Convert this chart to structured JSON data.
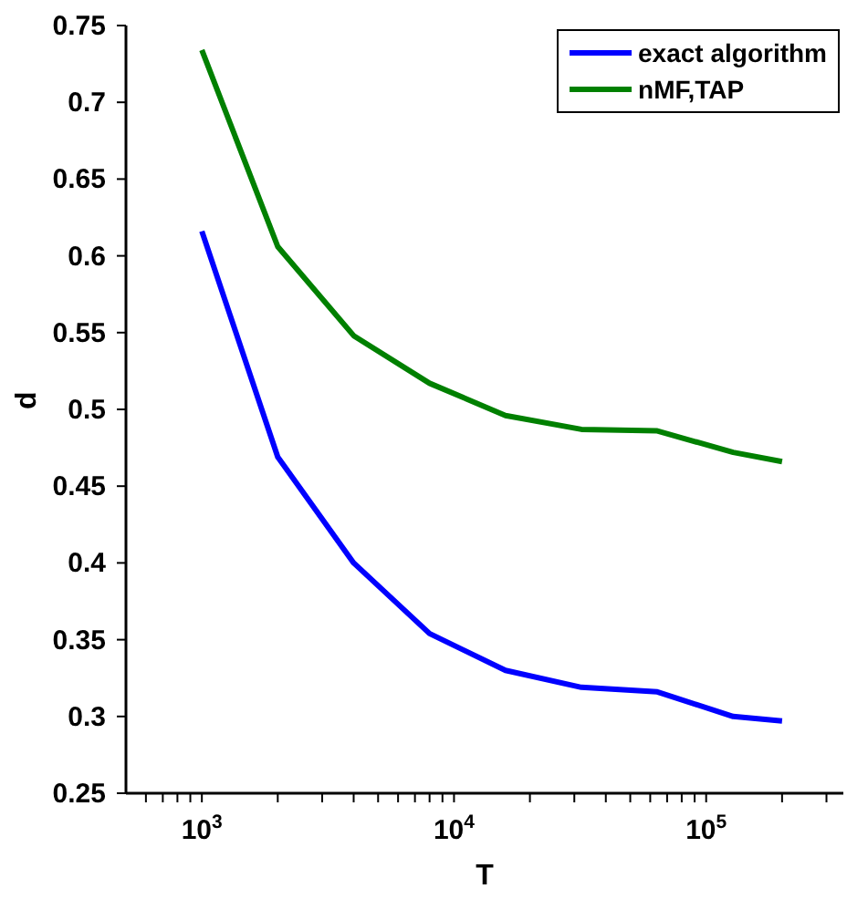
{
  "chart_data": {
    "type": "line",
    "xlabel": "T",
    "ylabel": "d",
    "x": [
      1000,
      2000,
      4000,
      8000,
      16000,
      32000,
      64000,
      128000,
      200000
    ],
    "series": [
      {
        "name": "exact algorithm",
        "color": "#0000ff",
        "values": [
          0.616,
          0.469,
          0.4,
          0.354,
          0.33,
          0.319,
          0.316,
          0.3,
          0.297
        ]
      },
      {
        "name": "nMF,TAP",
        "color": "#008000",
        "values": [
          0.734,
          0.606,
          0.548,
          0.517,
          0.496,
          0.487,
          0.486,
          0.472,
          0.466
        ]
      }
    ],
    "log": "x",
    "xlim": [
      500,
      350000
    ],
    "xticks": [
      {
        "value": 600,
        "label": null
      },
      {
        "value": 700,
        "label": null
      },
      {
        "value": 800,
        "label": null
      },
      {
        "value": 900,
        "label": null
      },
      {
        "value": 1000,
        "label": "10$^{3}$"
      },
      {
        "value": 2000,
        "label": null
      },
      {
        "value": 3000,
        "label": null
      },
      {
        "value": 4000,
        "label": null
      },
      {
        "value": 5000,
        "label": null
      },
      {
        "value": 6000,
        "label": null
      },
      {
        "value": 7000,
        "label": null
      },
      {
        "value": 8000,
        "label": null
      },
      {
        "value": 9000,
        "label": null
      },
      {
        "value": 10000,
        "label": "10$^{4}$"
      },
      {
        "value": 20000,
        "label": null
      },
      {
        "value": 30000,
        "label": null
      },
      {
        "value": 40000,
        "label": null
      },
      {
        "value": 50000,
        "label": null
      },
      {
        "value": 60000,
        "label": null
      },
      {
        "value": 70000,
        "label": null
      },
      {
        "value": 80000,
        "label": null
      },
      {
        "value": 90000,
        "label": null
      },
      {
        "value": 100000,
        "label": "10$^{5}$"
      },
      {
        "value": 200000,
        "label": null
      },
      {
        "value": 300000,
        "label": null
      }
    ],
    "ylim": [
      0.25,
      0.75
    ],
    "yticks": [
      0.25,
      0.3,
      0.35,
      0.4,
      0.45,
      0.5,
      0.55,
      0.6,
      0.65,
      0.7,
      0.75
    ],
    "grid": false,
    "legend": "top right",
    "marker": "none",
    "line_style": "solid"
  }
}
